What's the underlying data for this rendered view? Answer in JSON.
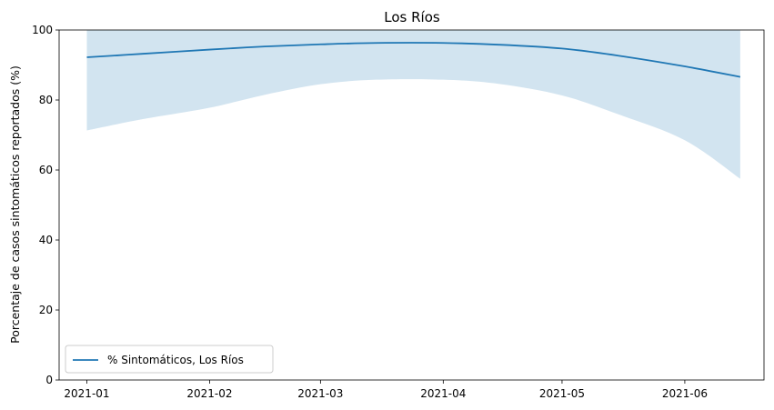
{
  "chart_data": {
    "type": "line",
    "title": "Los Ríos",
    "xlabel": "",
    "ylabel": "Porcentaje de casos sintomáticos reportados (%)",
    "ylim": [
      0,
      100
    ],
    "xlim": [
      "2020-12-25",
      "2021-06-21"
    ],
    "x_ticks": [
      "2021-01",
      "2021-02",
      "2021-03",
      "2021-04",
      "2021-05",
      "2021-06"
    ],
    "y_ticks": [
      0,
      20,
      40,
      60,
      80,
      100
    ],
    "grid": false,
    "legend_position": "lower-left",
    "series": [
      {
        "name": "% Sintomáticos, Los Ríos",
        "color": "#1f77b4",
        "x": [
          "2021-01-01",
          "2021-01-15",
          "2021-02-01",
          "2021-02-15",
          "2021-03-01",
          "2021-03-15",
          "2021-04-01",
          "2021-04-15",
          "2021-05-01",
          "2021-05-15",
          "2021-06-01",
          "2021-06-15"
        ],
        "y": [
          92.2,
          93.2,
          94.4,
          95.3,
          95.9,
          96.3,
          96.3,
          95.8,
          94.7,
          92.7,
          89.6,
          86.6
        ],
        "ci_lower": [
          71.3,
          74.5,
          77.8,
          81.5,
          84.5,
          85.8,
          85.8,
          84.6,
          81.3,
          76.0,
          68.5,
          57.5
        ],
        "ci_upper": [
          100,
          100,
          100,
          100,
          100,
          100,
          100,
          100,
          100,
          100,
          100,
          100
        ],
        "band_color": "#1f77b4"
      }
    ]
  }
}
